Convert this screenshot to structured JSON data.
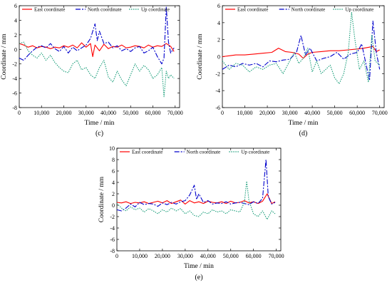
{
  "chart_data": [
    {
      "id": "c",
      "type": "line",
      "panel_label": "(c)",
      "xlabel": "Time / min",
      "ylabel": "Coordinate / mm",
      "xlim": [
        0,
        72000
      ],
      "ylim": [
        -8,
        6
      ],
      "xticks": [
        0,
        10000,
        20000,
        30000,
        40000,
        50000,
        60000,
        70000
      ],
      "xtick_labels": [
        "0",
        "10,000",
        "20,000",
        "30,000",
        "40,000",
        "50,000",
        "60,000",
        "70,000"
      ],
      "yticks": [
        -8,
        -6,
        -4,
        -2,
        0,
        2,
        4,
        6
      ],
      "legend_position": "top",
      "series": [
        {
          "name": "East coordinate",
          "color": "#ff0000",
          "dash": "none",
          "x": [
            0,
            2000,
            4000,
            6000,
            8000,
            10000,
            12000,
            14000,
            16000,
            18000,
            20000,
            22000,
            24000,
            26000,
            28000,
            30000,
            32000,
            33000,
            34000,
            36000,
            38000,
            40000,
            42000,
            44000,
            46000,
            48000,
            50000,
            52000,
            54000,
            56000,
            58000,
            60000,
            62000,
            64000,
            66000,
            68000,
            69500
          ],
          "y": [
            0.8,
            0.6,
            0.3,
            0.5,
            0.2,
            0.4,
            0.3,
            0.1,
            0.3,
            0.2,
            0.5,
            0.3,
            0.6,
            0.2,
            0.9,
            0.3,
            0.8,
            -1.0,
            0.6,
            -0.2,
            0.7,
            0.1,
            0.4,
            0.3,
            0.6,
            0.2,
            0.3,
            0.5,
            0.4,
            0.2,
            0.6,
            0.3,
            0.5,
            0.4,
            0.8,
            0.4,
            -0.3
          ]
        },
        {
          "name": "North coordinate",
          "color": "#0000cc",
          "dash": "7,2,2,2",
          "x": [
            0,
            2000,
            4000,
            6000,
            8000,
            10000,
            12000,
            14000,
            16000,
            18000,
            20000,
            22000,
            24000,
            26000,
            28000,
            30000,
            32000,
            34000,
            35000,
            36000,
            38000,
            40000,
            42000,
            44000,
            46000,
            48000,
            50000,
            52000,
            54000,
            56000,
            58000,
            60000,
            62000,
            64000,
            65000,
            66000,
            67000,
            68000,
            69500
          ],
          "y": [
            -1.2,
            -1.5,
            -0.8,
            -0.2,
            0.3,
            0.5,
            0.2,
            0.8,
            0.1,
            -0.3,
            0.4,
            -0.5,
            0.3,
            -0.2,
            0.2,
            0.6,
            1.5,
            3.5,
            1.2,
            2.5,
            0.8,
            1.0,
            0.2,
            0.5,
            -0.2,
            0.1,
            -0.3,
            0.2,
            0.4,
            -0.5,
            -0.2,
            0.3,
            -1.0,
            -2.0,
            -1.2,
            5.8,
            1.0,
            -0.5,
            0.2
          ]
        },
        {
          "name": "Up coordinate",
          "color": "#1a9e7a",
          "dash": "1.5,1.5",
          "x": [
            0,
            2000,
            4000,
            6000,
            8000,
            10000,
            12000,
            14000,
            16000,
            18000,
            20000,
            22000,
            24000,
            26000,
            28000,
            30000,
            32000,
            34000,
            36000,
            38000,
            40000,
            42000,
            44000,
            46000,
            48000,
            50000,
            52000,
            54000,
            56000,
            58000,
            60000,
            62000,
            64000,
            65000,
            66000,
            67000,
            68000,
            69500
          ],
          "y": [
            0.8,
            1.0,
            -0.2,
            -0.8,
            -1.2,
            -0.5,
            -1.5,
            -0.8,
            -1.8,
            -2.5,
            -3.0,
            -3.2,
            -2.0,
            -1.5,
            -2.8,
            -2.5,
            -3.5,
            -4.0,
            -2.5,
            -1.5,
            -3.8,
            -4.5,
            -3.0,
            -4.2,
            -5.0,
            -3.5,
            -2.0,
            -3.0,
            -2.2,
            -2.8,
            -4.0,
            -3.5,
            -2.5,
            -6.5,
            -3.0,
            -4.0,
            -3.5,
            -4.0
          ]
        }
      ]
    },
    {
      "id": "d",
      "type": "line",
      "panel_label": "(d)",
      "xlabel": "Time / min",
      "ylabel": "Coordinate / mm",
      "xlim": [
        0,
        72000
      ],
      "ylim": [
        -6,
        6
      ],
      "xticks": [
        0,
        10000,
        20000,
        30000,
        40000,
        50000,
        60000,
        70000
      ],
      "xtick_labels": [
        "0",
        "10,000",
        "20,000",
        "30,000",
        "40,000",
        "50,000",
        "60,000",
        "70,000"
      ],
      "yticks": [
        -6,
        -4,
        -2,
        0,
        2,
        4,
        6
      ],
      "legend_position": "top",
      "series": [
        {
          "name": "East coordinate",
          "color": "#ff0000",
          "dash": "none",
          "x": [
            0,
            3000,
            6000,
            10000,
            14000,
            18000,
            22000,
            25000,
            28000,
            31000,
            34000,
            36000,
            38000,
            40000,
            44000,
            48000,
            52000,
            56000,
            60000,
            63000,
            65000,
            67000,
            68500,
            70000
          ],
          "y": [
            0.0,
            0.1,
            0.2,
            0.2,
            0.3,
            0.4,
            0.5,
            1.0,
            0.6,
            0.5,
            0.3,
            -0.2,
            0.3,
            0.5,
            0.6,
            0.7,
            0.7,
            0.8,
            0.9,
            1.0,
            1.1,
            1.2,
            0.6,
            0.8
          ]
        },
        {
          "name": "North coordinate",
          "color": "#0000cc",
          "dash": "7,2,2,2",
          "x": [
            0,
            3000,
            6000,
            9000,
            12000,
            15000,
            18000,
            21000,
            24000,
            27000,
            30000,
            33000,
            35000,
            37000,
            39000,
            42000,
            45000,
            48000,
            51000,
            54000,
            57000,
            60000,
            62000,
            64000,
            65500,
            67000,
            68500,
            70000
          ],
          "y": [
            -1.5,
            -1.0,
            -1.2,
            -0.8,
            -1.0,
            -0.8,
            -1.2,
            -0.5,
            -0.6,
            -0.4,
            -0.3,
            0.5,
            2.5,
            0.2,
            1.0,
            -0.5,
            -0.2,
            0.0,
            0.5,
            -0.3,
            0.3,
            0.5,
            1.5,
            -1.0,
            -2.8,
            4.2,
            0.5,
            -1.5
          ]
        },
        {
          "name": "Up coordinate",
          "color": "#1a9e7a",
          "dash": "1.5,1.5",
          "x": [
            0,
            3000,
            6000,
            9000,
            12000,
            15000,
            18000,
            21000,
            24000,
            27000,
            30000,
            32000,
            34000,
            36000,
            38000,
            40000,
            42000,
            44000,
            46000,
            48000,
            50000,
            52000,
            54000,
            56000,
            57500,
            59000,
            61000,
            63000,
            65000,
            66500,
            68000,
            70000
          ],
          "y": [
            -0.5,
            -1.5,
            -0.8,
            -1.0,
            -1.8,
            -1.2,
            -1.5,
            -1.0,
            -0.8,
            -2.0,
            -0.5,
            0.5,
            -0.8,
            -0.2,
            1.0,
            -1.8,
            -0.5,
            -2.0,
            -1.5,
            -1.0,
            -2.5,
            -3.2,
            -2.0,
            0.5,
            5.2,
            2.0,
            -1.5,
            -0.5,
            -3.0,
            2.5,
            -0.5,
            -1.0
          ]
        }
      ]
    },
    {
      "id": "e",
      "type": "line",
      "panel_label": "(e)",
      "xlabel": "Time / min",
      "ylabel": "Coordinate / mm",
      "xlim": [
        0,
        72000
      ],
      "ylim": [
        -8,
        10
      ],
      "xticks": [
        0,
        10000,
        20000,
        30000,
        40000,
        50000,
        60000,
        70000
      ],
      "xtick_labels": [
        "0",
        "10,000",
        "20,000",
        "30,000",
        "40,000",
        "50,000",
        "60,000",
        "70,000"
      ],
      "yticks": [
        -8,
        -6,
        -4,
        -2,
        0,
        2,
        4,
        6,
        8,
        10
      ],
      "legend_position": "top",
      "series": [
        {
          "name": "East coordinate",
          "color": "#ff0000",
          "dash": "none",
          "x": [
            0,
            2000,
            4000,
            6000,
            8000,
            10000,
            12000,
            14000,
            16000,
            18000,
            20000,
            22000,
            24000,
            26000,
            28000,
            30000,
            32000,
            34000,
            36000,
            38000,
            40000,
            42000,
            44000,
            46000,
            48000,
            50000,
            52000,
            54000,
            56000,
            58000,
            60000,
            62000,
            64000,
            66000,
            68000,
            69500
          ],
          "y": [
            0.5,
            0.4,
            0.6,
            0.3,
            0.5,
            0.4,
            0.6,
            0.3,
            0.5,
            0.7,
            0.4,
            0.8,
            0.3,
            0.6,
            0.9,
            0.2,
            0.8,
            0.4,
            0.6,
            0.3,
            0.7,
            0.5,
            0.4,
            0.6,
            0.3,
            0.7,
            0.4,
            0.5,
            0.8,
            0.4,
            0.6,
            0.3,
            0.7,
            2.0,
            0.3,
            0.6
          ]
        },
        {
          "name": "North coordinate",
          "color": "#0000cc",
          "dash": "7,2,2,2",
          "x": [
            0,
            2000,
            4000,
            6000,
            8000,
            10000,
            12000,
            14000,
            16000,
            18000,
            20000,
            22000,
            24000,
            26000,
            28000,
            30000,
            32000,
            34000,
            35000,
            36000,
            38000,
            40000,
            42000,
            44000,
            46000,
            48000,
            50000,
            52000,
            54000,
            56000,
            58000,
            60000,
            62000,
            64000,
            65500,
            66500,
            68000,
            69500
          ],
          "y": [
            -0.8,
            -1.0,
            -0.5,
            0.2,
            -0.3,
            0.5,
            0.1,
            0.3,
            0.2,
            -0.2,
            0.4,
            0.1,
            0.5,
            0.2,
            0.6,
            0.8,
            1.8,
            3.5,
            1.0,
            2.0,
            0.5,
            0.8,
            0.2,
            0.4,
            0.3,
            0.6,
            0.2,
            0.4,
            0.5,
            0.3,
            0.1,
            0.6,
            0.3,
            1.2,
            8.0,
            1.5,
            0.2,
            0.5
          ]
        },
        {
          "name": "Up coordinate",
          "color": "#1a9e7a",
          "dash": "1.5,1.5",
          "x": [
            0,
            2000,
            4000,
            6000,
            8000,
            10000,
            12000,
            14000,
            16000,
            18000,
            20000,
            22000,
            24000,
            26000,
            28000,
            30000,
            32000,
            34000,
            36000,
            38000,
            40000,
            42000,
            44000,
            46000,
            48000,
            50000,
            52000,
            54000,
            56000,
            57000,
            58000,
            60000,
            62000,
            64000,
            66000,
            68000,
            69500
          ],
          "y": [
            0.3,
            -0.5,
            -1.0,
            -0.3,
            -0.8,
            -0.5,
            -1.2,
            -0.6,
            -1.0,
            -1.5,
            -0.8,
            -1.2,
            -0.5,
            -1.0,
            -0.6,
            -1.5,
            -1.0,
            -1.8,
            -2.0,
            -1.2,
            -1.5,
            -0.8,
            -1.2,
            -1.0,
            -1.5,
            -0.8,
            -1.0,
            -1.2,
            0.5,
            4.2,
            0.8,
            -1.5,
            -2.0,
            -1.0,
            -2.5,
            -1.0,
            -1.5
          ]
        }
      ]
    }
  ]
}
